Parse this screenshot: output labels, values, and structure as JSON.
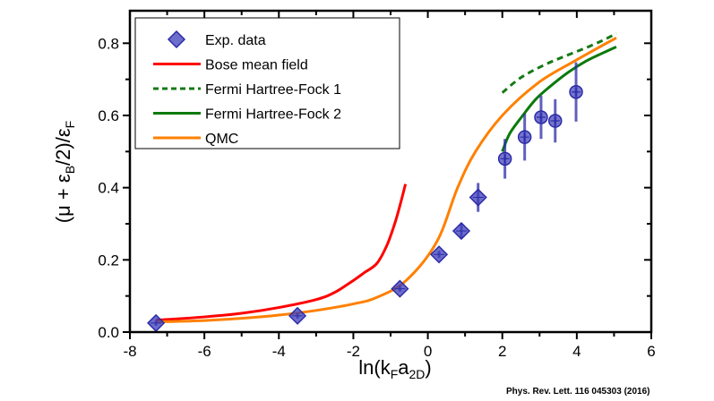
{
  "chart_data": {
    "type": "scatter",
    "xlabel": {
      "main": "ln(k",
      "sub1": "F",
      "mid": "a",
      "sub2": "2D",
      "end": ")"
    },
    "ylabel": {
      "p1": "(μ + ε",
      "sub1": "B",
      "p2": "/2)/ε",
      "sub2": "F"
    },
    "xlim": [
      -8,
      6
    ],
    "ylim": [
      0,
      0.89
    ],
    "xticks": [
      -8,
      -6,
      -4,
      -2,
      0,
      2,
      4,
      6
    ],
    "xtick_labels": [
      "-8",
      "-6",
      "-4",
      "-2",
      "0",
      "2",
      "4",
      "6"
    ],
    "yticks": [
      0,
      0.2,
      0.4,
      0.6,
      0.8
    ],
    "ytick_labels": [
      "0.0",
      "0.2",
      "0.4",
      "0.6",
      "0.8"
    ],
    "grid": false,
    "legend_position": "top-left",
    "series": [
      {
        "name": "Exp. data",
        "kind": "points",
        "color": "#2b2ba8",
        "points": [
          {
            "x": -7.3,
            "y": 0.025,
            "err": 0.008,
            "marker": "diamond"
          },
          {
            "x": -3.5,
            "y": 0.045,
            "err": 0.008,
            "marker": "diamond"
          },
          {
            "x": -0.75,
            "y": 0.12,
            "err": 0.008,
            "marker": "diamond"
          },
          {
            "x": 0.3,
            "y": 0.215,
            "err": 0.01,
            "marker": "diamond"
          },
          {
            "x": 0.9,
            "y": 0.28,
            "err": 0.022,
            "marker": "diamond"
          },
          {
            "x": 1.35,
            "y": 0.373,
            "err": 0.04,
            "marker": "diamond"
          },
          {
            "x": 2.07,
            "y": 0.48,
            "err": 0.055,
            "marker": "circle"
          },
          {
            "x": 2.6,
            "y": 0.54,
            "err": 0.065,
            "marker": "circle"
          },
          {
            "x": 3.04,
            "y": 0.595,
            "err": 0.06,
            "marker": "circle"
          },
          {
            "x": 3.42,
            "y": 0.585,
            "err": 0.06,
            "marker": "circle"
          },
          {
            "x": 3.98,
            "y": 0.665,
            "err": 0.082,
            "marker": "circle"
          }
        ]
      },
      {
        "name": "Bose mean field",
        "kind": "line",
        "color": "#ff0000",
        "dash": false,
        "x": [
          -7.3,
          -6,
          -5,
          -4,
          -3,
          -2.5,
          -2,
          -1.7,
          -1.37,
          -1.1,
          -0.89,
          -0.75,
          -0.6
        ],
        "y": [
          0.033,
          0.042,
          0.052,
          0.068,
          0.09,
          0.11,
          0.143,
          0.165,
          0.19,
          0.24,
          0.3,
          0.35,
          0.41
        ]
      },
      {
        "name": "Fermi Hartree-Fock 1",
        "kind": "line",
        "color": "#147a14",
        "dash": true,
        "x": [
          2.0,
          2.5,
          3.13,
          3.7,
          4.24,
          4.7,
          5.06
        ],
        "y": [
          0.663,
          0.705,
          0.74,
          0.765,
          0.787,
          0.808,
          0.827
        ]
      },
      {
        "name": "Fermi Hartree-Fock 2",
        "kind": "line",
        "color": "#0b7a0b",
        "dash": false,
        "x": [
          2.0,
          2.2,
          2.55,
          2.9,
          3.28,
          3.75,
          4.24,
          4.7,
          5.06
        ],
        "y": [
          0.5,
          0.55,
          0.6,
          0.645,
          0.68,
          0.718,
          0.75,
          0.773,
          0.79
        ]
      },
      {
        "name": "QMC",
        "kind": "line",
        "color": "#ff8000",
        "dash": false,
        "x": [
          -7.3,
          -6,
          -5,
          -4,
          -3,
          -2,
          -1.37,
          -0.58,
          0.24,
          0.8,
          1.28,
          2.0,
          2.96,
          3.93,
          5.06
        ],
        "y": [
          0.028,
          0.032,
          0.038,
          0.047,
          0.06,
          0.078,
          0.096,
          0.143,
          0.25,
          0.4,
          0.5,
          0.6,
          0.69,
          0.75,
          0.815
        ]
      }
    ]
  },
  "citation": "Phys. Rev. Lett. 116 045303 (2016)"
}
